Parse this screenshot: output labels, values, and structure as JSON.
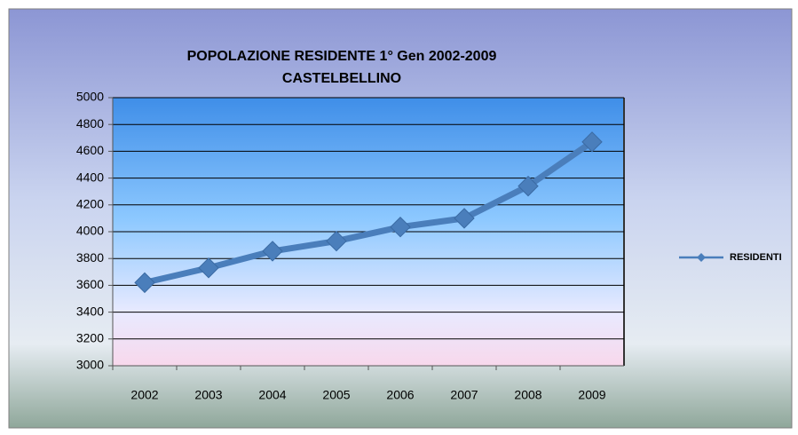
{
  "chart_data": {
    "type": "line",
    "title": "POPOLAZIONE RESIDENTE 1° Gen 2002-2009",
    "subtitle": "CASTELBELLINO",
    "categories": [
      "2002",
      "2003",
      "2004",
      "2005",
      "2006",
      "2007",
      "2008",
      "2009"
    ],
    "series": [
      {
        "name": "RESIDENTI",
        "color": "#4a7ebb",
        "values": [
          3620,
          3730,
          3855,
          3930,
          4035,
          4100,
          4340,
          4670
        ]
      }
    ],
    "ylim": [
      3000,
      5000
    ],
    "yticks": [
      3000,
      3200,
      3400,
      3600,
      3800,
      4000,
      4200,
      4400,
      4600,
      4800,
      5000
    ],
    "grid": true,
    "legend": "right"
  }
}
